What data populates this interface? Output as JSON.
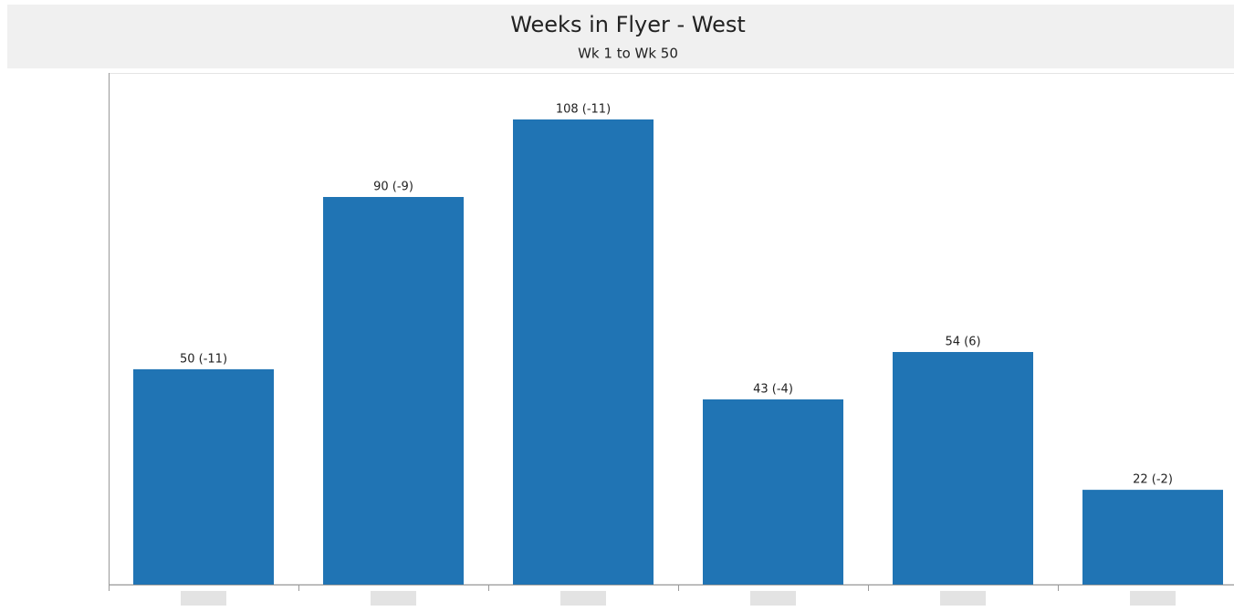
{
  "chart_data": {
    "type": "bar",
    "title": "Weeks in Flyer - West",
    "subtitle": "Wk 1 to Wk 50",
    "categories": [
      null,
      null,
      null,
      null,
      null,
      null
    ],
    "values": [
      50,
      90,
      108,
      43,
      54,
      22
    ],
    "value_labels": [
      "50 (-11)",
      "90 (-9)",
      "108 (-11)",
      "43 (-4)",
      "54 (6)",
      "22 (-2)"
    ],
    "color": "#2074b4"
  }
}
